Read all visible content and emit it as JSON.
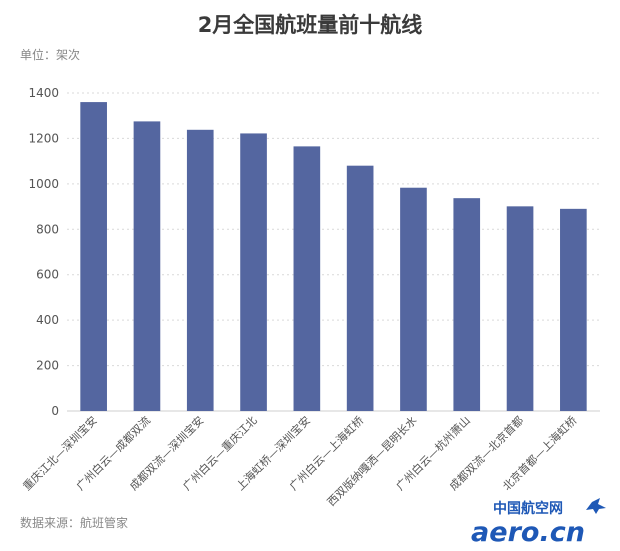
{
  "chart_data": {
    "type": "bar",
    "title": "2月全国航班量前十航线",
    "unit_label": "单位：架次",
    "source": "数据来源：航班管家",
    "categories": [
      "重庆江北—深圳宝安",
      "广州白云—成都双流",
      "成都双流—深圳宝安",
      "广州白云—重庆江北",
      "上海虹桥—深圳宝安",
      "广州白云—上海虹桥",
      "西双版纳嘎洒—昆明长水",
      "广州白云—杭州萧山",
      "成都双流—北京首都",
      "北京首都—上海虹桥"
    ],
    "values": [
      1360,
      1275,
      1238,
      1222,
      1165,
      1080,
      983,
      937,
      901,
      890
    ],
    "ylim": [
      0,
      1400
    ],
    "yticks": [
      0,
      200,
      400,
      600,
      800,
      1000,
      1200,
      1400
    ],
    "grid": true,
    "bar_color": "#5466a0"
  },
  "watermark": {
    "top_text": "中国航空网",
    "brand_text": "aero.cn",
    "color": "#1e58b6"
  }
}
